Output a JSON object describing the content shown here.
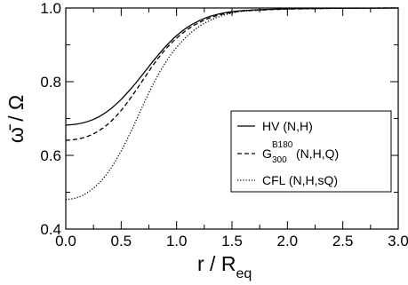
{
  "chart_data": {
    "type": "line",
    "xlim": [
      0,
      3
    ],
    "ylim": [
      0.4,
      1.0
    ],
    "xticks": [
      "0.0",
      "0.5",
      "1.0",
      "1.5",
      "2.0",
      "2.5",
      "3.0"
    ],
    "yticks": [
      "0.4",
      "0.6",
      "0.8",
      "1.0"
    ],
    "xlabel": {
      "main": "r / R",
      "sub": "eq"
    },
    "ylabel": "ω̄ / Ω",
    "grid": false,
    "legend_position": "right",
    "series": [
      {
        "name": "HV (N,H)",
        "style": "solid",
        "x": [
          0,
          0.1,
          0.2,
          0.3,
          0.4,
          0.5,
          0.6,
          0.7,
          0.8,
          0.9,
          1.0,
          1.1,
          1.2,
          1.3,
          1.4,
          1.5,
          1.6,
          1.8,
          2.0,
          2.2,
          2.5,
          3.0
        ],
        "y": [
          0.682,
          0.685,
          0.692,
          0.705,
          0.725,
          0.752,
          0.785,
          0.822,
          0.86,
          0.895,
          0.925,
          0.948,
          0.965,
          0.977,
          0.985,
          0.99,
          0.993,
          0.996,
          0.998,
          0.999,
          0.9995,
          1.0
        ]
      },
      {
        "name": "G^{B180}_{300} (N,H,Q)",
        "label_parts": {
          "base": "G",
          "sup": "B180",
          "sub": "300",
          "tail": " (N,H,Q)"
        },
        "style": "dashed",
        "x": [
          0,
          0.1,
          0.2,
          0.3,
          0.4,
          0.5,
          0.6,
          0.7,
          0.8,
          0.9,
          1.0,
          1.1,
          1.2,
          1.3,
          1.4,
          1.5,
          1.6,
          1.8,
          2.0,
          2.2,
          2.5,
          3.0
        ],
        "y": [
          0.641,
          0.644,
          0.652,
          0.667,
          0.69,
          0.722,
          0.762,
          0.806,
          0.85,
          0.888,
          0.918,
          0.942,
          0.96,
          0.973,
          0.982,
          0.988,
          0.992,
          0.995,
          0.997,
          0.998,
          0.9993,
          1.0
        ]
      },
      {
        "name": "CFL (N,H,sQ)",
        "style": "dotted",
        "x": [
          0,
          0.1,
          0.2,
          0.3,
          0.4,
          0.5,
          0.6,
          0.7,
          0.8,
          0.9,
          1.0,
          1.1,
          1.2,
          1.3,
          1.4,
          1.5,
          1.6,
          1.8,
          2.0,
          2.2,
          2.5,
          3.0
        ],
        "y": [
          0.48,
          0.485,
          0.5,
          0.525,
          0.562,
          0.612,
          0.672,
          0.738,
          0.8,
          0.852,
          0.893,
          0.925,
          0.949,
          0.966,
          0.978,
          0.986,
          0.991,
          0.995,
          0.997,
          0.998,
          0.999,
          1.0
        ]
      }
    ]
  },
  "colors": {
    "line": "#000000",
    "background": "#ffffff"
  }
}
